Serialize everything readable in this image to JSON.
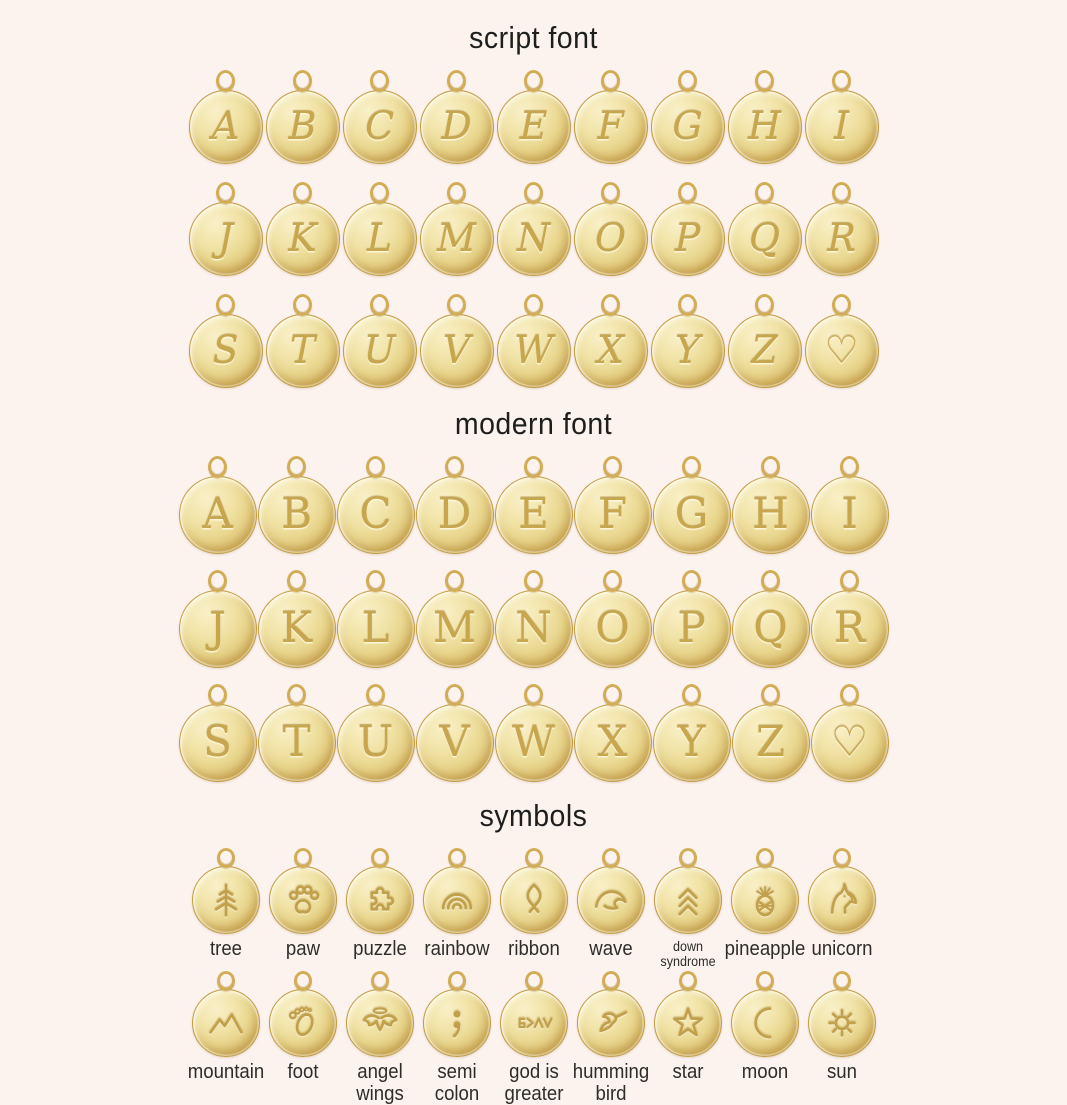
{
  "page": {
    "background": "#fcf2ee"
  },
  "colors": {
    "gold_face": "#eeda96",
    "gold_rim": "#c39d42",
    "gold_highlight": "#f9f0c8",
    "engrave": "#c7a64e",
    "title_text": "#1e1e1e",
    "label_text": "#2e2d2b"
  },
  "sections": {
    "script": {
      "title": "script font",
      "rows": [
        [
          "A",
          "B",
          "C",
          "D",
          "E",
          "F",
          "G",
          "H",
          "I"
        ],
        [
          "J",
          "K",
          "L",
          "M",
          "N",
          "O",
          "P",
          "Q",
          "R"
        ],
        [
          "S",
          "T",
          "U",
          "V",
          "W",
          "X",
          "Y",
          "Z",
          "♡"
        ]
      ]
    },
    "modern": {
      "title": "modern font",
      "rows": [
        [
          "A",
          "B",
          "C",
          "D",
          "E",
          "F",
          "G",
          "H",
          "I"
        ],
        [
          "J",
          "K",
          "L",
          "M",
          "N",
          "O",
          "P",
          "Q",
          "R"
        ],
        [
          "S",
          "T",
          "U",
          "V",
          "W",
          "X",
          "Y",
          "Z",
          "♡"
        ]
      ]
    },
    "symbols": {
      "title": "symbols",
      "rows": [
        [
          {
            "icon": "tree-icon",
            "label": "tree"
          },
          {
            "icon": "paw-icon",
            "label": "paw"
          },
          {
            "icon": "puzzle-icon",
            "label": "puzzle"
          },
          {
            "icon": "rainbow-icon",
            "label": "rainbow"
          },
          {
            "icon": "ribbon-icon",
            "label": "ribbon"
          },
          {
            "icon": "wave-icon",
            "label": "wave"
          },
          {
            "icon": "down-syndrome-icon",
            "label": "down\nsyndrome",
            "small_label": true
          },
          {
            "icon": "pineapple-icon",
            "label": "pineapple"
          },
          {
            "icon": "unicorn-icon",
            "label": "unicorn"
          }
        ],
        [
          {
            "icon": "mountain-icon",
            "label": "mountain"
          },
          {
            "icon": "foot-icon",
            "label": "foot"
          },
          {
            "icon": "angel-wings-icon",
            "label": "angel\nwings"
          },
          {
            "icon": "semi-colon-icon",
            "label": "semi\ncolon"
          },
          {
            "icon": "god-is-greater-icon",
            "label": "god is\ngreater"
          },
          {
            "icon": "humming-bird-icon",
            "label": "humming\nbird"
          },
          {
            "icon": "star-icon",
            "label": "star"
          },
          {
            "icon": "moon-icon",
            "label": "moon"
          },
          {
            "icon": "sun-icon",
            "label": "sun"
          }
        ]
      ]
    }
  }
}
